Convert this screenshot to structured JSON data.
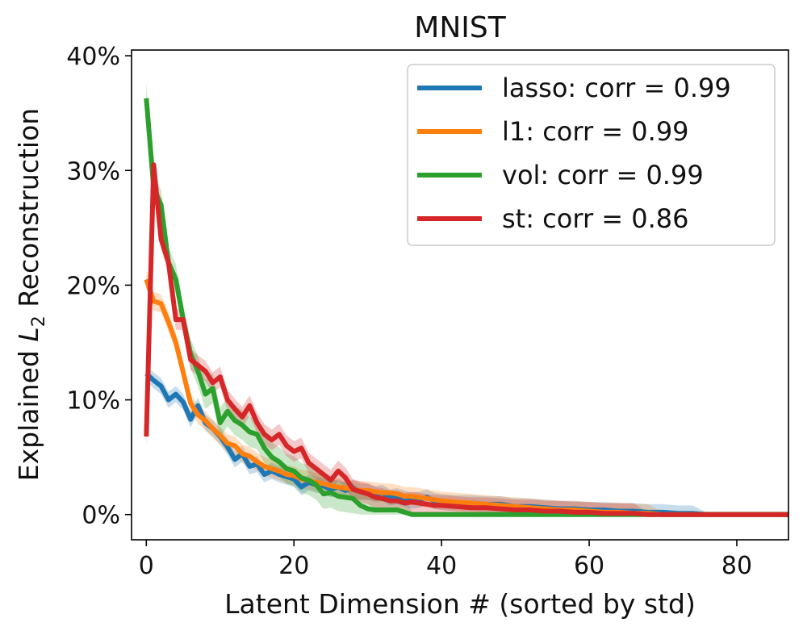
{
  "chart_data": {
    "type": "line",
    "title": "MNIST",
    "xlabel": "Latent Dimension # (sorted by std)",
    "ylabel": "Explained L2 Reconstruction",
    "ylabel_parts": {
      "before": "Explained ",
      "var": "L",
      "sub": "2",
      "after": " Reconstruction"
    },
    "xlim": [
      -2,
      87
    ],
    "ylim": [
      -2.2,
      40.5
    ],
    "xticks": [
      0,
      20,
      40,
      60,
      80
    ],
    "yticks": [
      0,
      10,
      20,
      30,
      40
    ],
    "ytick_labels": [
      "0%",
      "10%",
      "20%",
      "30%",
      "40%"
    ],
    "xtick_labels": [
      "0",
      "20",
      "40",
      "60",
      "80"
    ],
    "legend_position": "top-right",
    "grid": false,
    "series": [
      {
        "name": "lasso: corr = 0.99",
        "color": "#1f77b4",
        "x": [
          0,
          1,
          2,
          3,
          4,
          5,
          6,
          7,
          8,
          9,
          10,
          11,
          12,
          13,
          14,
          15,
          16,
          17,
          18,
          19,
          20,
          21,
          22,
          23,
          24,
          25,
          26,
          27,
          28,
          29,
          30,
          31,
          32,
          33,
          34,
          35,
          36,
          37,
          38,
          39,
          40,
          42,
          44,
          46,
          48,
          50,
          52,
          54,
          56,
          58,
          60,
          62,
          64,
          66,
          68,
          70,
          72,
          74,
          76,
          78,
          80,
          82,
          84,
          86,
          87
        ],
        "values": [
          12.3,
          11.7,
          11.2,
          10.0,
          10.5,
          9.8,
          8.3,
          9.5,
          8.0,
          7.5,
          6.8,
          5.9,
          4.8,
          5.3,
          4.2,
          4.4,
          3.5,
          3.8,
          3.5,
          3.3,
          3.1,
          2.4,
          2.8,
          2.6,
          2.5,
          2.2,
          2.4,
          2.1,
          2.3,
          2.0,
          2.0,
          1.8,
          1.9,
          1.5,
          1.6,
          1.4,
          1.2,
          1.3,
          1.5,
          1.2,
          1.1,
          1.0,
          1.0,
          0.9,
          0.9,
          0.7,
          0.7,
          0.6,
          0.5,
          0.5,
          0.4,
          0.4,
          0.3,
          0.3,
          0.2,
          0.2,
          0.1,
          0.1,
          0.0,
          0.0,
          0.0,
          0.0,
          0.0,
          0.0,
          0.0
        ],
        "band": 0.7
      },
      {
        "name": "l1: corr = 0.99",
        "color": "#ff7f0e",
        "x": [
          0,
          1,
          2,
          3,
          4,
          5,
          6,
          7,
          8,
          9,
          10,
          11,
          12,
          13,
          14,
          15,
          16,
          17,
          18,
          19,
          20,
          21,
          22,
          23,
          24,
          25,
          26,
          27,
          28,
          29,
          30,
          31,
          32,
          33,
          34,
          35,
          36,
          37,
          38,
          39,
          40,
          42,
          44,
          46,
          48,
          50,
          52,
          54,
          56,
          58,
          60,
          62,
          64,
          66,
          68,
          70,
          72,
          74,
          76,
          78,
          80,
          82,
          84,
          86,
          87
        ],
        "values": [
          20.5,
          18.6,
          18.4,
          16.8,
          15.0,
          12.4,
          9.7,
          8.7,
          8.2,
          7.5,
          6.9,
          6.2,
          6.0,
          5.3,
          5.1,
          4.6,
          4.2,
          4.0,
          3.8,
          3.5,
          3.4,
          3.1,
          3.0,
          2.8,
          2.7,
          2.5,
          2.4,
          2.3,
          2.2,
          2.1,
          2.1,
          2.0,
          1.9,
          1.9,
          1.8,
          1.6,
          1.6,
          1.5,
          1.4,
          1.3,
          1.2,
          1.1,
          1.0,
          0.9,
          0.8,
          0.7,
          0.6,
          0.5,
          0.4,
          0.4,
          0.3,
          0.2,
          0.2,
          0.1,
          0.1,
          0.0,
          0.0,
          0.0,
          0.0,
          0.0,
          0.0,
          0.0,
          0.0,
          0.0,
          0.0
        ],
        "band": 0.8
      },
      {
        "name": "vol: corr = 0.99",
        "color": "#2ca02c",
        "x": [
          0,
          1,
          2,
          3,
          4,
          5,
          6,
          7,
          8,
          9,
          10,
          11,
          12,
          13,
          14,
          15,
          16,
          17,
          18,
          19,
          20,
          21,
          22,
          23,
          24,
          25,
          26,
          27,
          28,
          29,
          30,
          31,
          32,
          33,
          34,
          35,
          36,
          37,
          38,
          39,
          40,
          42,
          44,
          46,
          48,
          50,
          52,
          54,
          56,
          58,
          60,
          62,
          64,
          66,
          68,
          70,
          72,
          74,
          76,
          78,
          80,
          82,
          84,
          86,
          87
        ],
        "values": [
          36.3,
          28.5,
          27.0,
          22.0,
          20.5,
          17.0,
          14.0,
          12.5,
          10.5,
          11.0,
          8.0,
          9.0,
          8.2,
          7.8,
          7.2,
          7.0,
          5.8,
          5.0,
          4.6,
          4.0,
          3.8,
          3.2,
          3.0,
          2.6,
          1.8,
          1.9,
          1.6,
          1.5,
          1.4,
          0.8,
          0.5,
          0.4,
          0.4,
          0.4,
          0.4,
          0.2,
          0.0,
          0.0,
          0.0,
          0.0,
          0.0,
          0.0,
          0.0,
          0.0,
          0.0,
          0.0,
          0.0,
          0.0,
          0.0,
          0.0,
          0.0,
          0.0,
          0.0,
          0.0,
          0.0,
          0.0,
          0.0,
          0.0,
          0.0,
          0.0,
          0.0,
          0.0,
          0.0,
          0.0,
          0.0
        ],
        "band": 1.3
      },
      {
        "name": "st: corr = 0.86",
        "color": "#d62728",
        "x": [
          0,
          1,
          2,
          3,
          4,
          5,
          6,
          7,
          8,
          9,
          10,
          11,
          12,
          13,
          14,
          15,
          16,
          17,
          18,
          19,
          20,
          21,
          22,
          23,
          24,
          25,
          26,
          27,
          28,
          29,
          30,
          31,
          32,
          33,
          34,
          35,
          36,
          37,
          38,
          39,
          40,
          42,
          44,
          46,
          48,
          50,
          52,
          54,
          56,
          58,
          60,
          62,
          64,
          66,
          68,
          70,
          72,
          74,
          76,
          78,
          80,
          82,
          84,
          86,
          87
        ],
        "values": [
          6.8,
          30.5,
          24.0,
          22.0,
          17.0,
          17.0,
          13.5,
          13.0,
          12.5,
          11.5,
          12.0,
          10.0,
          9.2,
          8.5,
          9.5,
          8.0,
          7.0,
          6.5,
          7.0,
          6.0,
          5.5,
          5.8,
          4.5,
          4.0,
          3.5,
          3.0,
          3.8,
          3.2,
          2.2,
          2.0,
          1.8,
          1.5,
          1.4,
          1.2,
          1.2,
          1.0,
          1.1,
          1.0,
          0.9,
          0.8,
          0.8,
          0.7,
          0.6,
          0.6,
          0.5,
          0.4,
          0.4,
          0.3,
          0.3,
          0.2,
          0.2,
          0.1,
          0.1,
          0.1,
          0.0,
          0.0,
          0.0,
          0.0,
          0.0,
          0.0,
          0.0,
          0.0,
          0.0,
          0.0,
          0.0
        ],
        "band": 0.9
      }
    ]
  }
}
